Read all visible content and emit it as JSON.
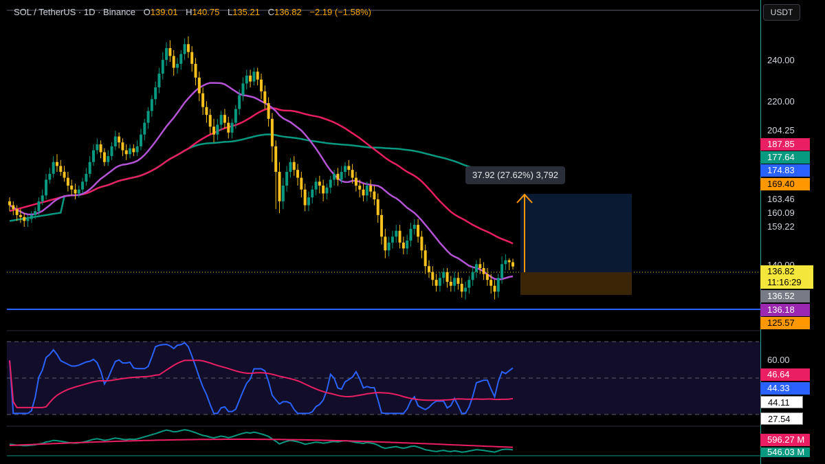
{
  "header": {
    "symbol": "SOL / TetherUS · 1D · Binance",
    "open_label": "O",
    "open": "139.01",
    "high_label": "H",
    "high": "140.75",
    "low_label": "L",
    "low": "135.21",
    "close_label": "C",
    "close": "136.82",
    "change": "−2.19 (−1.58%)"
  },
  "axis": {
    "currency": "USDT",
    "ticks": [
      "240.00",
      "220.00",
      "204.25",
      "163.46",
      "160.09",
      "159.22",
      "140.00"
    ]
  },
  "price_labels": [
    {
      "text": "187.85",
      "color": "#e91e63"
    },
    {
      "text": "177.64",
      "color": "#089981"
    },
    {
      "text": "174.83",
      "color": "#2962ff"
    },
    {
      "text": "169.40",
      "color": "#ff9800"
    },
    {
      "text": "136.52",
      "color": "#787b86"
    },
    {
      "text": "136.18",
      "color": "#9c27b0"
    },
    {
      "text": "125.57",
      "color": "#ff9800"
    }
  ],
  "last_price": {
    "value": "136.82",
    "countdown": "11:16:29",
    "color": "#f5e63b"
  },
  "measure_tooltip": "37.92 (27.62%) 3,792",
  "rsi": {
    "tick": "60.00",
    "labels": [
      {
        "text": "46.64",
        "color": "#e91e63"
      },
      {
        "text": "44.33",
        "color": "#2962ff"
      },
      {
        "text": "44.11",
        "color": "#ffffff"
      },
      {
        "text": "27.54",
        "color": "#ffffff"
      }
    ]
  },
  "volume": {
    "labels": [
      {
        "text": "596.27 M",
        "color": "#e91e63"
      },
      {
        "text": "546.03 M",
        "color": "#089981"
      }
    ]
  },
  "colors": {
    "up": "#089981",
    "down": "#f7c21e",
    "ma_fast": "#b553d6",
    "ma_mid": "#e91e63",
    "ma_slow": "#089981",
    "support": "#2962ff",
    "rsi": "#2962ff",
    "rsi_ma": "#e91e63"
  },
  "chart_data": {
    "type": "candlestick",
    "price_range": [
      115,
      262
    ],
    "candles": [
      [
        170,
        168,
        172,
        165
      ],
      [
        168,
        166,
        170,
        163
      ],
      [
        166,
        163,
        168,
        160
      ],
      [
        163,
        162,
        166,
        159
      ],
      [
        162,
        160,
        164,
        157
      ],
      [
        160,
        161,
        163,
        157
      ],
      [
        161,
        163,
        165,
        159
      ],
      [
        163,
        165,
        167,
        161
      ],
      [
        165,
        170,
        172,
        163
      ],
      [
        170,
        173,
        176,
        168
      ],
      [
        173,
        181,
        184,
        171
      ],
      [
        181,
        184,
        187,
        179
      ],
      [
        184,
        190,
        193,
        182
      ],
      [
        190,
        188,
        194,
        185
      ],
      [
        188,
        185,
        191,
        183
      ],
      [
        185,
        182,
        188,
        180
      ],
      [
        182,
        178,
        185,
        175
      ],
      [
        178,
        176,
        181,
        173
      ],
      [
        176,
        174,
        179,
        171
      ],
      [
        174,
        176,
        178,
        172
      ],
      [
        176,
        180,
        182,
        174
      ],
      [
        180,
        184,
        187,
        178
      ],
      [
        184,
        190,
        193,
        182
      ],
      [
        190,
        196,
        199,
        188
      ],
      [
        196,
        199,
        202,
        194
      ],
      [
        199,
        195,
        201,
        192
      ],
      [
        195,
        190,
        197,
        188
      ],
      [
        190,
        193,
        196,
        188
      ],
      [
        193,
        198,
        200,
        191
      ],
      [
        198,
        203,
        206,
        196
      ],
      [
        203,
        200,
        205,
        197
      ],
      [
        200,
        196,
        202,
        193
      ],
      [
        196,
        194,
        199,
        191
      ],
      [
        194,
        197,
        199,
        192
      ],
      [
        197,
        195,
        199,
        193
      ],
      [
        195,
        198,
        201,
        193
      ],
      [
        198,
        204,
        207,
        196
      ],
      [
        204,
        210,
        212,
        201
      ],
      [
        210,
        216,
        218,
        207
      ],
      [
        216,
        222,
        224,
        213
      ],
      [
        222,
        228,
        231,
        219
      ],
      [
        228,
        235,
        238,
        225
      ],
      [
        235,
        242,
        246,
        232
      ],
      [
        242,
        248,
        251,
        239
      ],
      [
        248,
        244,
        252,
        241
      ],
      [
        244,
        238,
        247,
        234
      ],
      [
        238,
        240,
        243,
        235
      ],
      [
        240,
        245,
        247,
        237
      ],
      [
        245,
        250,
        253,
        242
      ],
      [
        250,
        246,
        254,
        243
      ],
      [
        246,
        240,
        249,
        236
      ],
      [
        240,
        233,
        243,
        229
      ],
      [
        233,
        225,
        236,
        221
      ],
      [
        225,
        218,
        228,
        214
      ],
      [
        218,
        214,
        221,
        210
      ],
      [
        214,
        208,
        217,
        204
      ],
      [
        208,
        204,
        212,
        200
      ],
      [
        204,
        209,
        212,
        201
      ],
      [
        209,
        214,
        216,
        206
      ],
      [
        214,
        210,
        217,
        207
      ],
      [
        210,
        205,
        213,
        202
      ],
      [
        205,
        210,
        212,
        202
      ],
      [
        210,
        217,
        219,
        207
      ],
      [
        217,
        224,
        227,
        214
      ],
      [
        224,
        230,
        233,
        221
      ],
      [
        230,
        234,
        237,
        227
      ],
      [
        234,
        231,
        237,
        228
      ],
      [
        231,
        236,
        238,
        229
      ],
      [
        236,
        232,
        238,
        229
      ],
      [
        232,
        226,
        235,
        222
      ],
      [
        226,
        220,
        229,
        217
      ],
      [
        220,
        212,
        223,
        208
      ],
      [
        212,
        198,
        215,
        190
      ],
      [
        198,
        185,
        201,
        166
      ],
      [
        185,
        170,
        190,
        164
      ],
      [
        170,
        178,
        182,
        166
      ],
      [
        178,
        185,
        188,
        175
      ],
      [
        185,
        190,
        192,
        182
      ],
      [
        190,
        186,
        193,
        183
      ],
      [
        186,
        182,
        189,
        178
      ],
      [
        182,
        176,
        185,
        172
      ],
      [
        176,
        168,
        179,
        165
      ],
      [
        168,
        172,
        175,
        165
      ],
      [
        172,
        176,
        178,
        169
      ],
      [
        176,
        180,
        182,
        173
      ],
      [
        180,
        178,
        183,
        174
      ],
      [
        178,
        174,
        181,
        170
      ],
      [
        174,
        177,
        179,
        171
      ],
      [
        177,
        181,
        183,
        174
      ],
      [
        181,
        184,
        186,
        178
      ],
      [
        184,
        181,
        187,
        178
      ],
      [
        181,
        185,
        188,
        179
      ],
      [
        185,
        188,
        190,
        182
      ],
      [
        188,
        186,
        191,
        183
      ],
      [
        186,
        182,
        189,
        179
      ],
      [
        182,
        178,
        185,
        175
      ],
      [
        178,
        176,
        181,
        172
      ],
      [
        176,
        173,
        179,
        170
      ],
      [
        173,
        178,
        180,
        170
      ],
      [
        178,
        175,
        181,
        172
      ],
      [
        175,
        171,
        178,
        168
      ],
      [
        171,
        163,
        174,
        159
      ],
      [
        163,
        152,
        166,
        148
      ],
      [
        152,
        145,
        156,
        141
      ],
      [
        145,
        149,
        152,
        142
      ],
      [
        149,
        152,
        155,
        146
      ],
      [
        152,
        155,
        158,
        149
      ],
      [
        155,
        149,
        158,
        146
      ],
      [
        149,
        146,
        152,
        143
      ],
      [
        146,
        150,
        153,
        143
      ],
      [
        150,
        156,
        159,
        147
      ],
      [
        156,
        158,
        161,
        153
      ],
      [
        158,
        152,
        161,
        149
      ],
      [
        152,
        145,
        155,
        141
      ],
      [
        145,
        137,
        148,
        133
      ],
      [
        137,
        134,
        140,
        131
      ],
      [
        134,
        130,
        137,
        127
      ],
      [
        130,
        127,
        133,
        124
      ],
      [
        127,
        131,
        134,
        124
      ],
      [
        131,
        134,
        136,
        128
      ],
      [
        134,
        129,
        136,
        126
      ],
      [
        129,
        127,
        132,
        124
      ],
      [
        127,
        131,
        134,
        124
      ],
      [
        131,
        128,
        134,
        125
      ],
      [
        128,
        124,
        131,
        121
      ],
      [
        124,
        126,
        129,
        120
      ],
      [
        126,
        130,
        132,
        123
      ],
      [
        130,
        134,
        137,
        127
      ],
      [
        134,
        138,
        140,
        131
      ],
      [
        138,
        136,
        141,
        133
      ],
      [
        136,
        133,
        139,
        130
      ],
      [
        133,
        130,
        136,
        127
      ],
      [
        130,
        127,
        133,
        123
      ],
      [
        127,
        124,
        130,
        120
      ],
      [
        124,
        131,
        133,
        121
      ],
      [
        131,
        138,
        142,
        128
      ],
      [
        138,
        140,
        143,
        135
      ],
      [
        140,
        139,
        141,
        135
      ],
      [
        139,
        136.82,
        140.75,
        135.21
      ]
    ]
  }
}
